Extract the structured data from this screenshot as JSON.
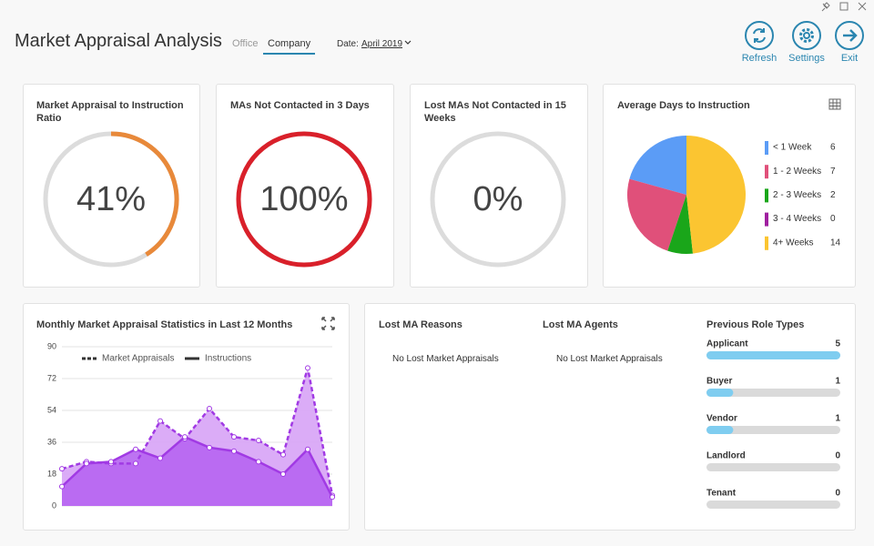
{
  "header": {
    "title": "Market Appraisal Analysis",
    "tabs": [
      "Office",
      "Company"
    ],
    "active_tab": 1,
    "date_label": "Date:",
    "date": "April 2019",
    "buttons": [
      "Refresh",
      "Settings",
      "Exit"
    ]
  },
  "gauges": [
    {
      "title": "Market Appraisal to Instruction Ratio",
      "value": 41,
      "value_label": "41%",
      "lim": [
        0,
        100
      ],
      "color": "#e8893a"
    },
    {
      "title": "MAs Not Contacted in 3 Days",
      "value": 100,
      "value_label": "100%",
      "lim": [
        0,
        100
      ],
      "color": "#d9202a"
    },
    {
      "title": "Lost MAs Not Contacted in 15 Weeks",
      "value": 0,
      "value_label": "0%",
      "lim": [
        0,
        100
      ],
      "color": "#e8893a"
    }
  ],
  "pie": {
    "type": "pie",
    "title": "Average Days to Instruction",
    "categories": [
      "< 1 Week",
      "1 - 2 Weeks",
      "2 - 3 Weeks",
      "3 - 4 Weeks",
      "4+ Weeks"
    ],
    "values": [
      6,
      7,
      2,
      0,
      14
    ],
    "colors": [
      "#5b9cf6",
      "#e0507a",
      "#1aa61a",
      "#a020a0",
      "#fbc531"
    ]
  },
  "trend": {
    "type": "area",
    "title": "Monthly Market Appraisal Statistics in Last 12 Months",
    "categories": [
      null,
      null,
      null,
      null,
      null,
      null,
      null,
      null,
      null,
      null,
      null,
      null
    ],
    "ylim": [
      0,
      90
    ],
    "yticks": [
      0,
      18,
      36,
      54,
      72,
      90
    ],
    "grid": true,
    "series": [
      {
        "name": "Market Appraisals",
        "dashed": true,
        "color": "#a13ae4",
        "fill": "#d7a3f6",
        "values": [
          21,
          25,
          24,
          24,
          48,
          38,
          55,
          39,
          37,
          29,
          78,
          6
        ]
      },
      {
        "name": "Instructions",
        "dashed": false,
        "color": "#a13ae4",
        "fill": "#b664f1",
        "values": [
          11,
          24,
          25,
          32,
          27,
          39,
          33,
          31,
          25,
          18,
          32,
          5
        ]
      }
    ]
  },
  "lost_reasons": {
    "title": "Lost MA Reasons",
    "message": "No Lost Market Appraisals"
  },
  "lost_agents": {
    "title": "Lost MA Agents",
    "message": "No Lost Market Appraisals"
  },
  "roles": {
    "type": "bar",
    "title": "Previous Role Types",
    "categories": [
      "Applicant",
      "Buyer",
      "Vendor",
      "Landlord",
      "Tenant"
    ],
    "values": [
      5,
      1,
      1,
      0,
      0
    ],
    "xlim": [
      0,
      5
    ],
    "color": "#7fcdf0"
  }
}
